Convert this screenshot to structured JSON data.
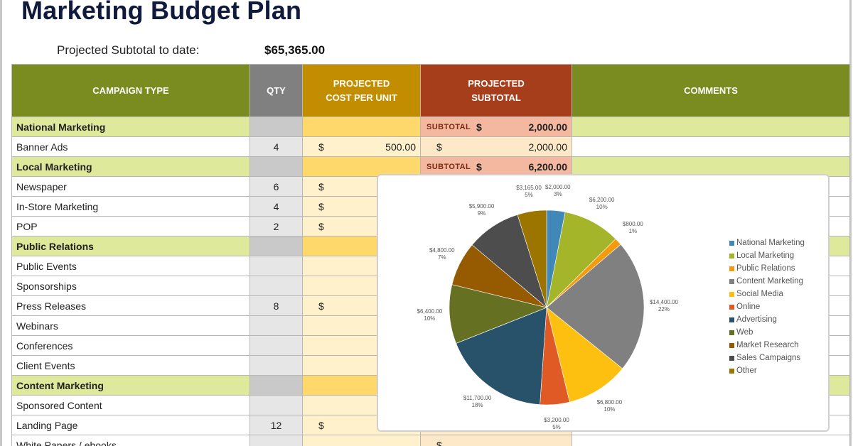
{
  "title": "Marketing Budget Plan",
  "summary": {
    "label": "Projected Subtotal to date:",
    "value": "$65,365.00"
  },
  "table": {
    "headers": {
      "campaign_type": "CAMPAIGN TYPE",
      "qty": "QTY",
      "cost_per_unit_1": "PROJECTED",
      "cost_per_unit_2": "COST PER UNIT",
      "subtotal_1": "PROJECTED",
      "subtotal_2": "SUBTOTAL",
      "comments": "COMMENTS"
    },
    "rows": [
      {
        "type": "group",
        "name": "National Marketing",
        "subtotal_tag": "SUBTOTAL",
        "currency": "$",
        "subtotal": "2,000.00"
      },
      {
        "type": "item",
        "name": "Banner Ads",
        "qty": "4",
        "cost_currency": "$",
        "cost": "500.00",
        "sub_currency": "$",
        "subtotal": "2,000.00"
      },
      {
        "type": "group",
        "name": "Local Marketing",
        "subtotal_tag": "SUBTOTAL",
        "currency": "$",
        "subtotal": "6,200.00"
      },
      {
        "type": "item",
        "name": "Newspaper",
        "qty": "6",
        "cost_currency": "$"
      },
      {
        "type": "item",
        "name": "In-Store Marketing",
        "qty": "4",
        "cost_currency": "$"
      },
      {
        "type": "item",
        "name": "POP",
        "qty": "2",
        "cost_currency": "$"
      },
      {
        "type": "group",
        "name": "Public Relations"
      },
      {
        "type": "item",
        "name": "Public Events"
      },
      {
        "type": "item",
        "name": "Sponsorships"
      },
      {
        "type": "item",
        "name": "Press Releases",
        "qty": "8",
        "cost_currency": "$"
      },
      {
        "type": "item",
        "name": "Webinars"
      },
      {
        "type": "item",
        "name": "Conferences"
      },
      {
        "type": "item",
        "name": "Client Events"
      },
      {
        "type": "group",
        "name": "Content Marketing"
      },
      {
        "type": "item",
        "name": "Sponsored Content"
      },
      {
        "type": "item",
        "name": "Landing Page",
        "qty": "12",
        "cost_currency": "$"
      },
      {
        "type": "item",
        "name": "White Papers / ebooks",
        "sub_currency": "$"
      }
    ]
  },
  "chart_data": {
    "type": "pie",
    "title": "",
    "legend_position": "right",
    "categories": [
      "National Marketing",
      "Local Marketing",
      "Public Relations",
      "Content Marketing",
      "Social Media",
      "Online",
      "Advertising",
      "Web",
      "Market Research",
      "Sales Campaigns",
      "Other"
    ],
    "values": [
      2000,
      6200,
      800,
      14400,
      6800,
      3200,
      11700,
      6400,
      4800,
      5900,
      3165
    ],
    "value_labels": [
      "$2,000.00",
      "$6,200.00",
      "$800.00",
      "$14,400.00",
      "$6,800.00",
      "$3,200.00",
      "$11,700.00",
      "$6,400.00",
      "$4,800.00",
      "$5,900.00",
      "$3,165.00"
    ],
    "percent_labels": [
      "3%",
      "10%",
      "1%",
      "22%",
      "10%",
      "5%",
      "18%",
      "10%",
      "7%",
      "9%",
      "5%"
    ],
    "colors": [
      "#3f88b8",
      "#a4b52a",
      "#f39b0a",
      "#808080",
      "#fdc010",
      "#e05a25",
      "#27526a",
      "#667022",
      "#965a00",
      "#4d4d4d",
      "#9c7500"
    ]
  }
}
